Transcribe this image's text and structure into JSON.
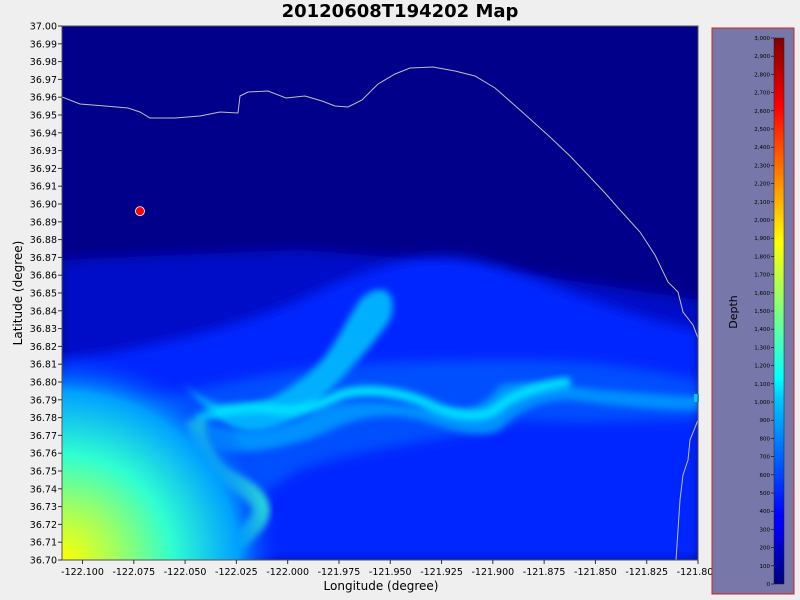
{
  "chart_data": {
    "type": "heatmap",
    "title": "20120608T194202 Map",
    "xlabel": "Longitude (degree)",
    "ylabel": "Latitude (degree)",
    "xlim": [
      -122.11,
      -121.8
    ],
    "ylim": [
      36.7,
      37.0
    ],
    "x_ticks": [
      "-122.100",
      "-122.075",
      "-122.050",
      "-122.025",
      "-122.000",
      "-121.975",
      "-121.950",
      "-121.925",
      "-121.900",
      "-121.875",
      "-121.850",
      "-121.825",
      "-121.800"
    ],
    "y_ticks": [
      "36.70",
      "36.71",
      "36.72",
      "36.73",
      "36.74",
      "36.75",
      "36.76",
      "36.77",
      "36.78",
      "36.79",
      "36.80",
      "36.81",
      "36.82",
      "36.83",
      "36.84",
      "36.85",
      "36.86",
      "36.87",
      "36.88",
      "36.89",
      "36.90",
      "36.91",
      "36.92",
      "36.93",
      "36.94",
      "36.95",
      "36.96",
      "36.97",
      "36.98",
      "36.99",
      "37.00"
    ],
    "colorbar": {
      "label": "Depth",
      "range": [
        0,
        3000
      ],
      "ticks": [
        "0",
        "100",
        "200",
        "300",
        "400",
        "500",
        "600",
        "700",
        "800",
        "900",
        "1,000",
        "1,100",
        "1,200",
        "1,300",
        "1,400",
        "1,500",
        "1,600",
        "1,700",
        "1,800",
        "1,900",
        "2,000",
        "2,100",
        "2,200",
        "2,300",
        "2,400",
        "2,500",
        "2,600",
        "2,700",
        "2,800",
        "2,900",
        "3,000"
      ],
      "colormap": "jet"
    },
    "markers": [
      {
        "lon": -122.072,
        "lat": 36.896,
        "color": "#ff0000"
      },
      {
        "lon": -121.8,
        "lat": 36.791,
        "color": "#00c8ff"
      }
    ],
    "colors": {
      "background": "#efefef",
      "plot_bg": "#00008b",
      "coastline": "#bfbfbf",
      "colorbar_panel": "#7777aa",
      "colorbar_border": "#cc2222"
    }
  }
}
